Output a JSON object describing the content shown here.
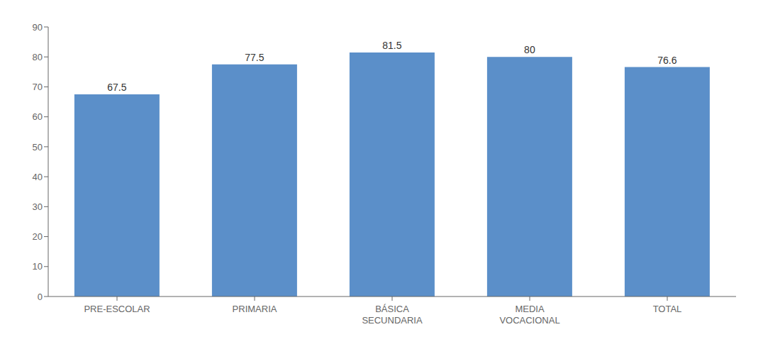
{
  "chart_data": {
    "type": "bar",
    "categories": [
      "PRE-ESCOLAR",
      "PRIMARIA",
      "BÁSICA\nSECUNDARIA",
      "MEDIA\nVOCACIONAL",
      "TOTAL"
    ],
    "values": [
      67.5,
      77.5,
      81.5,
      80.0,
      76.6
    ],
    "color": "#5b8fc9",
    "ylim": [
      0,
      90
    ],
    "yticks": [
      0,
      10,
      20,
      30,
      40,
      50,
      60,
      70,
      80,
      90
    ],
    "grid": false,
    "data_labels": true
  }
}
